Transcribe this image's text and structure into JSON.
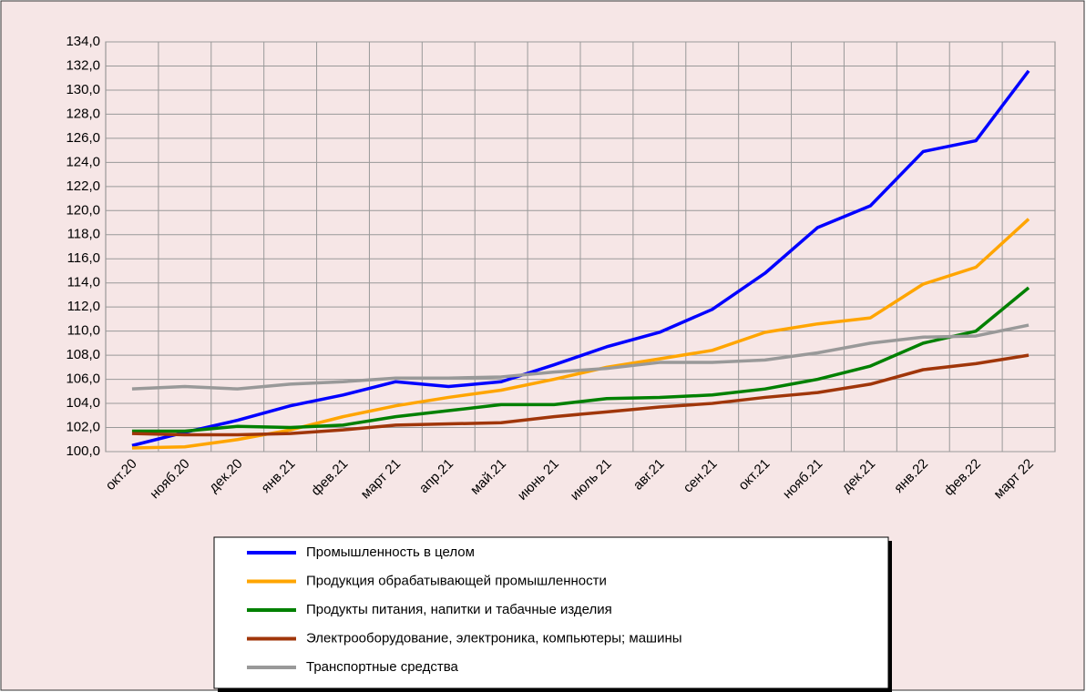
{
  "chart_data": {
    "type": "line",
    "categories": [
      "окт.20",
      "нояб.20",
      "дек.20",
      "янв.21",
      "фев.21",
      "март 21",
      "апр.21",
      "май.21",
      "июнь 21",
      "июль 21",
      "авг.21",
      "сен.21",
      "окт.21",
      "нояб.21",
      "дек.21",
      "янв.22",
      "фев.22",
      "март 22"
    ],
    "series": [
      {
        "name": "Промышленность в целом",
        "color": "#0000ff",
        "values": [
          100.5,
          101.6,
          102.6,
          103.8,
          104.7,
          105.8,
          105.4,
          105.8,
          107.2,
          108.7,
          109.9,
          111.8,
          114.8,
          118.6,
          120.4,
          124.9,
          125.8,
          131.6
        ]
      },
      {
        "name": "Продукция обрабатывающей промышленности",
        "color": "#ffa500",
        "values": [
          100.3,
          100.4,
          101.0,
          101.8,
          102.9,
          103.8,
          104.5,
          105.1,
          106.0,
          107.0,
          107.7,
          108.4,
          109.9,
          110.6,
          111.1,
          113.9,
          115.3,
          119.3
        ]
      },
      {
        "name": "Продукты питания, напитки и табачные изделия",
        "color": "#008000",
        "values": [
          101.7,
          101.7,
          102.1,
          102.0,
          102.2,
          102.9,
          103.4,
          103.9,
          103.9,
          104.4,
          104.5,
          104.7,
          105.2,
          106.0,
          107.1,
          109.0,
          110.0,
          113.6
        ]
      },
      {
        "name": "Электрооборудование, электроника, компьютеры; машины",
        "color": "#a0360a",
        "values": [
          101.5,
          101.4,
          101.4,
          101.5,
          101.8,
          102.2,
          102.3,
          102.4,
          102.9,
          103.3,
          103.7,
          104.0,
          104.5,
          104.9,
          105.6,
          106.8,
          107.3,
          108.0
        ]
      },
      {
        "name": "Транспортные средства",
        "color": "#999999",
        "values": [
          105.2,
          105.4,
          105.2,
          105.6,
          105.8,
          106.1,
          106.1,
          106.2,
          106.6,
          106.9,
          107.4,
          107.4,
          107.6,
          108.2,
          109.0,
          109.5,
          109.6,
          110.5
        ]
      }
    ],
    "ylim": [
      100,
      134
    ],
    "yticks": [
      {
        "value": 100,
        "label": "100,0"
      },
      {
        "value": 102,
        "label": "102,0"
      },
      {
        "value": 104,
        "label": "104,0"
      },
      {
        "value": 106,
        "label": "106,0"
      },
      {
        "value": 108,
        "label": "108,0"
      },
      {
        "value": 110,
        "label": "110,0"
      },
      {
        "value": 112,
        "label": "112,0"
      },
      {
        "value": 114,
        "label": "114,0"
      },
      {
        "value": 116,
        "label": "116,0"
      },
      {
        "value": 118,
        "label": "118,0"
      },
      {
        "value": 120,
        "label": "120,0"
      },
      {
        "value": 122,
        "label": "122,0"
      },
      {
        "value": 124,
        "label": "124,0"
      },
      {
        "value": 126,
        "label": "126,0"
      },
      {
        "value": 128,
        "label": "128,0"
      },
      {
        "value": 130,
        "label": "130,0"
      },
      {
        "value": 132,
        "label": "132,0"
      },
      {
        "value": 134,
        "label": "134,0"
      }
    ],
    "grid": true,
    "legend": "bottom"
  }
}
